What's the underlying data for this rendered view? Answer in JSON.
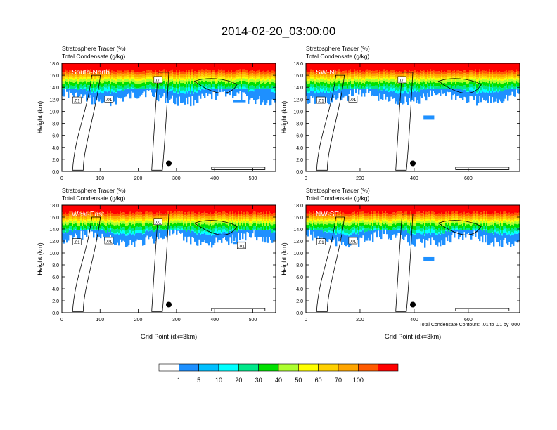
{
  "title": "2014-02-20_03:00:00",
  "footer_note": "Total Condensate Contours: .01 to .01 by .000",
  "colorbar": {
    "labels": [
      "1",
      "5",
      "10",
      "20",
      "30",
      "40",
      "50",
      "60",
      "70",
      "100"
    ],
    "colors": [
      "#FFFFFF",
      "#1E90FF",
      "#00BFFF",
      "#00FFFF",
      "#00E88A",
      "#00E000",
      "#ADFF2F",
      "#FFFF00",
      "#FFD000",
      "#FFA500",
      "#FF5A00",
      "#FF0000"
    ]
  },
  "chart_data": [
    {
      "type": "heatmap",
      "panel": "South-North",
      "title_lines": [
        "Stratosphere Tracer   (%)",
        "Total Condensate   (g/kg)"
      ],
      "ylabel": "Height (km)",
      "xlabel": "",
      "xlim": [
        0,
        560
      ],
      "ylim": [
        0,
        18
      ],
      "xticks": [
        "0",
        "100",
        "200",
        "300",
        "400",
        "500"
      ],
      "yticks": [
        "0.0",
        "2.0",
        "4.0",
        "6.0",
        "8.0",
        "10.0",
        "12.0",
        "14.0",
        "16.0",
        "18.0"
      ],
      "contour_labels": [
        ".01",
        ".01",
        ".01"
      ],
      "marker": {
        "x": 280,
        "y": 1.0
      }
    },
    {
      "type": "heatmap",
      "panel": "SW-NE",
      "title_lines": [
        "Stratosphere Tracer   (%)",
        "Total Condensate   (g/kg)"
      ],
      "ylabel": "Height (km)",
      "xlabel": "",
      "xlim": [
        0,
        790
      ],
      "ylim": [
        0,
        18
      ],
      "xticks": [
        "0",
        "200",
        "400",
        "600"
      ],
      "yticks": [
        "0.0",
        "2.0",
        "4.0",
        "6.0",
        "8.0",
        "10.0",
        "12.0",
        "14.0",
        "16.0",
        "18.0"
      ],
      "contour_labels": [
        ".01",
        ".01",
        ".01"
      ],
      "marker": {
        "x": 395,
        "y": 1.0
      }
    },
    {
      "type": "heatmap",
      "panel": "West-East",
      "title_lines": [
        "Stratosphere Tracer   (%)",
        "Total Condensate   (g/kg)"
      ],
      "ylabel": "Height (km)",
      "xlabel": "Grid Point (dx=3km)",
      "xlim": [
        0,
        560
      ],
      "ylim": [
        0,
        18
      ],
      "xticks": [
        "0",
        "100",
        "200",
        "300",
        "400",
        "500"
      ],
      "yticks": [
        "0.0",
        "2.0",
        "4.0",
        "6.0",
        "8.0",
        "10.0",
        "12.0",
        "14.0",
        "16.0",
        "18.0"
      ],
      "contour_labels": [
        ".01",
        ".01",
        ".01",
        ".01"
      ],
      "marker": {
        "x": 280,
        "y": 1.0
      }
    },
    {
      "type": "heatmap",
      "panel": "NW-SE",
      "title_lines": [
        "Stratosphere Tracer   (%)",
        "Total Condensate   (g/kg)"
      ],
      "ylabel": "Height (km)",
      "xlabel": "Grid Point (dx=3km)",
      "xlim": [
        0,
        790
      ],
      "ylim": [
        0,
        18
      ],
      "xticks": [
        "0",
        "200",
        "400",
        "600"
      ],
      "yticks": [
        "0.0",
        "2.0",
        "4.0",
        "6.0",
        "8.0",
        "10.0",
        "12.0",
        "14.0",
        "16.0",
        "18.0"
      ],
      "contour_labels": [
        ".01",
        ".01"
      ],
      "marker": {
        "x": 395,
        "y": 1.0
      }
    }
  ]
}
